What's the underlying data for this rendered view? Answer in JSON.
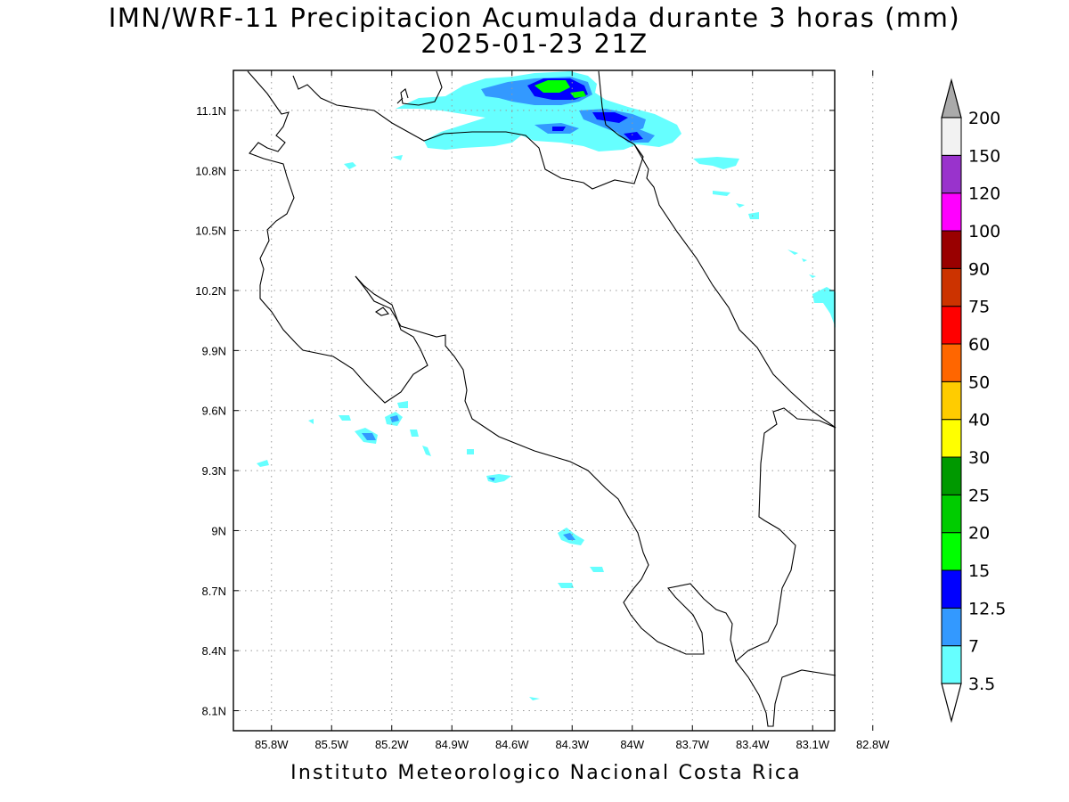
{
  "title": {
    "line1": "IMN/WRF-11 Precipitacion Acumulada durante 3 horas (mm)",
    "line2": "2025-01-23 21Z"
  },
  "footer": "Instituto Meteorologico Nacional Costa Rica",
  "map": {
    "lon_range": [
      -85.99,
      -82.99
    ],
    "lat_range": [
      8.0,
      11.3
    ],
    "lon_ticks": [
      {
        "value": -85.8,
        "label": "85.8W"
      },
      {
        "value": -85.5,
        "label": "85.5W"
      },
      {
        "value": -85.2,
        "label": "85.2W"
      },
      {
        "value": -84.9,
        "label": "84.9W"
      },
      {
        "value": -84.6,
        "label": "84.6W"
      },
      {
        "value": -84.3,
        "label": "84.3W"
      },
      {
        "value": -84.0,
        "label": "84W"
      },
      {
        "value": -83.7,
        "label": "83.7W"
      },
      {
        "value": -83.4,
        "label": "83.4W"
      },
      {
        "value": -83.1,
        "label": "83.1W"
      },
      {
        "value": -82.8,
        "label": "82.8W"
      }
    ],
    "lat_ticks": [
      {
        "value": 11.1,
        "label": "11.1N"
      },
      {
        "value": 10.8,
        "label": "10.8N"
      },
      {
        "value": 10.5,
        "label": "10.5N"
      },
      {
        "value": 10.2,
        "label": "10.2N"
      },
      {
        "value": 9.9,
        "label": "9.9N"
      },
      {
        "value": 9.6,
        "label": "9.6N"
      },
      {
        "value": 9.3,
        "label": "9.3N"
      },
      {
        "value": 9.0,
        "label": "9N"
      },
      {
        "value": 8.7,
        "label": "8.7N"
      },
      {
        "value": 8.4,
        "label": "8.4N"
      },
      {
        "value": 8.1,
        "label": "8.1N"
      }
    ],
    "gridlines": true
  },
  "colorbar": {
    "unit": "mm",
    "levels": [
      {
        "label": "3.5",
        "color": "#66ffff"
      },
      {
        "label": "7",
        "color": "#3399ff"
      },
      {
        "label": "12.5",
        "color": "#0000ff"
      },
      {
        "label": "15",
        "color": "#00ff00"
      },
      {
        "label": "20",
        "color": "#00cc00"
      },
      {
        "label": "25",
        "color": "#009900"
      },
      {
        "label": "30",
        "color": "#ffff00"
      },
      {
        "label": "40",
        "color": "#ffcc00"
      },
      {
        "label": "50",
        "color": "#ff6600"
      },
      {
        "label": "60",
        "color": "#ff0000"
      },
      {
        "label": "75",
        "color": "#cc3300"
      },
      {
        "label": "90",
        "color": "#990000"
      },
      {
        "label": "100",
        "color": "#ff00ff"
      },
      {
        "label": "120",
        "color": "#9933cc"
      },
      {
        "label": "150",
        "color": "#f2f2f2"
      },
      {
        "label": "200",
        "color": "#aaaaaa"
      }
    ],
    "under_color": "#ffffff",
    "over_color": "#aaaaaa"
  }
}
